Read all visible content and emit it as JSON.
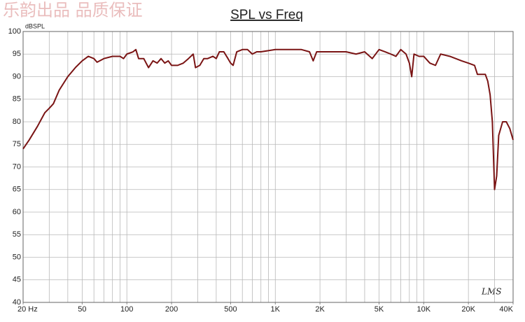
{
  "chart_data": {
    "type": "line",
    "title": "SPL vs Freq",
    "watermark": "乐韵出品 品质保证",
    "ylabel": "dBSPL",
    "logo": "LMS",
    "log_x": true,
    "grid": true,
    "color": "#7a1414",
    "xlim": [
      20,
      40000
    ],
    "ylim": [
      40,
      100
    ],
    "yticks": [
      40,
      45,
      50,
      55,
      60,
      65,
      70,
      75,
      80,
      85,
      90,
      95,
      100
    ],
    "xticks": [
      {
        "value": 20,
        "label": "20 Hz"
      },
      50,
      100,
      200,
      500,
      {
        "value": 1000,
        "label": "1K"
      },
      {
        "value": 2000,
        "label": "2K"
      },
      {
        "value": 5000,
        "label": "5K"
      },
      {
        "value": 10000,
        "label": "10K"
      },
      {
        "value": 20000,
        "label": "20K"
      },
      {
        "value": 40000,
        "label": "40K"
      }
    ],
    "xgrid": [
      20,
      30,
      40,
      50,
      60,
      70,
      80,
      90,
      100,
      200,
      300,
      400,
      500,
      600,
      700,
      800,
      900,
      1000,
      2000,
      3000,
      4000,
      5000,
      6000,
      7000,
      8000,
      9000,
      10000,
      20000,
      30000,
      40000
    ],
    "x": [
      20,
      22,
      25,
      28,
      30,
      32,
      35,
      40,
      45,
      50,
      55,
      60,
      63,
      70,
      80,
      90,
      95,
      100,
      110,
      115,
      120,
      130,
      140,
      150,
      160,
      170,
      180,
      190,
      200,
      220,
      240,
      260,
      280,
      290,
      310,
      330,
      350,
      380,
      400,
      420,
      450,
      480,
      500,
      520,
      550,
      600,
      650,
      700,
      750,
      800,
      1000,
      1200,
      1500,
      1700,
      1800,
      1900,
      2500,
      3000,
      3500,
      4000,
      4500,
      5000,
      5500,
      6000,
      6500,
      7000,
      7600,
      8000,
      8300,
      8600,
      9300,
      10000,
      11000,
      12000,
      13000,
      15000,
      18000,
      20000,
      22000,
      23000,
      26000,
      27000,
      28000,
      29000,
      30000,
      31000,
      32000,
      34000,
      36000,
      38000,
      40000
    ],
    "values": [
      74,
      76,
      79,
      82,
      83,
      84,
      87,
      90,
      92,
      93.5,
      94.5,
      94,
      93.2,
      94,
      94.5,
      94.5,
      94,
      95,
      95.5,
      96,
      94,
      94,
      92,
      93.5,
      93,
      94,
      93,
      93.5,
      92.5,
      92.5,
      93,
      94,
      95,
      92,
      92.5,
      94,
      94,
      94.5,
      94,
      95.5,
      95.5,
      94,
      93,
      92.5,
      95.5,
      96,
      96,
      95,
      95.5,
      95.5,
      96,
      96,
      96,
      95.5,
      93.5,
      95.5,
      95.5,
      95.5,
      95,
      95.5,
      94,
      96,
      95.5,
      95,
      94.5,
      96,
      95,
      93,
      90,
      95,
      94.5,
      94.5,
      93,
      92.5,
      95,
      94.5,
      93.5,
      93,
      92.5,
      90.5,
      90.5,
      89,
      86,
      80,
      65,
      68,
      77,
      80,
      80,
      78.5,
      76
    ]
  }
}
